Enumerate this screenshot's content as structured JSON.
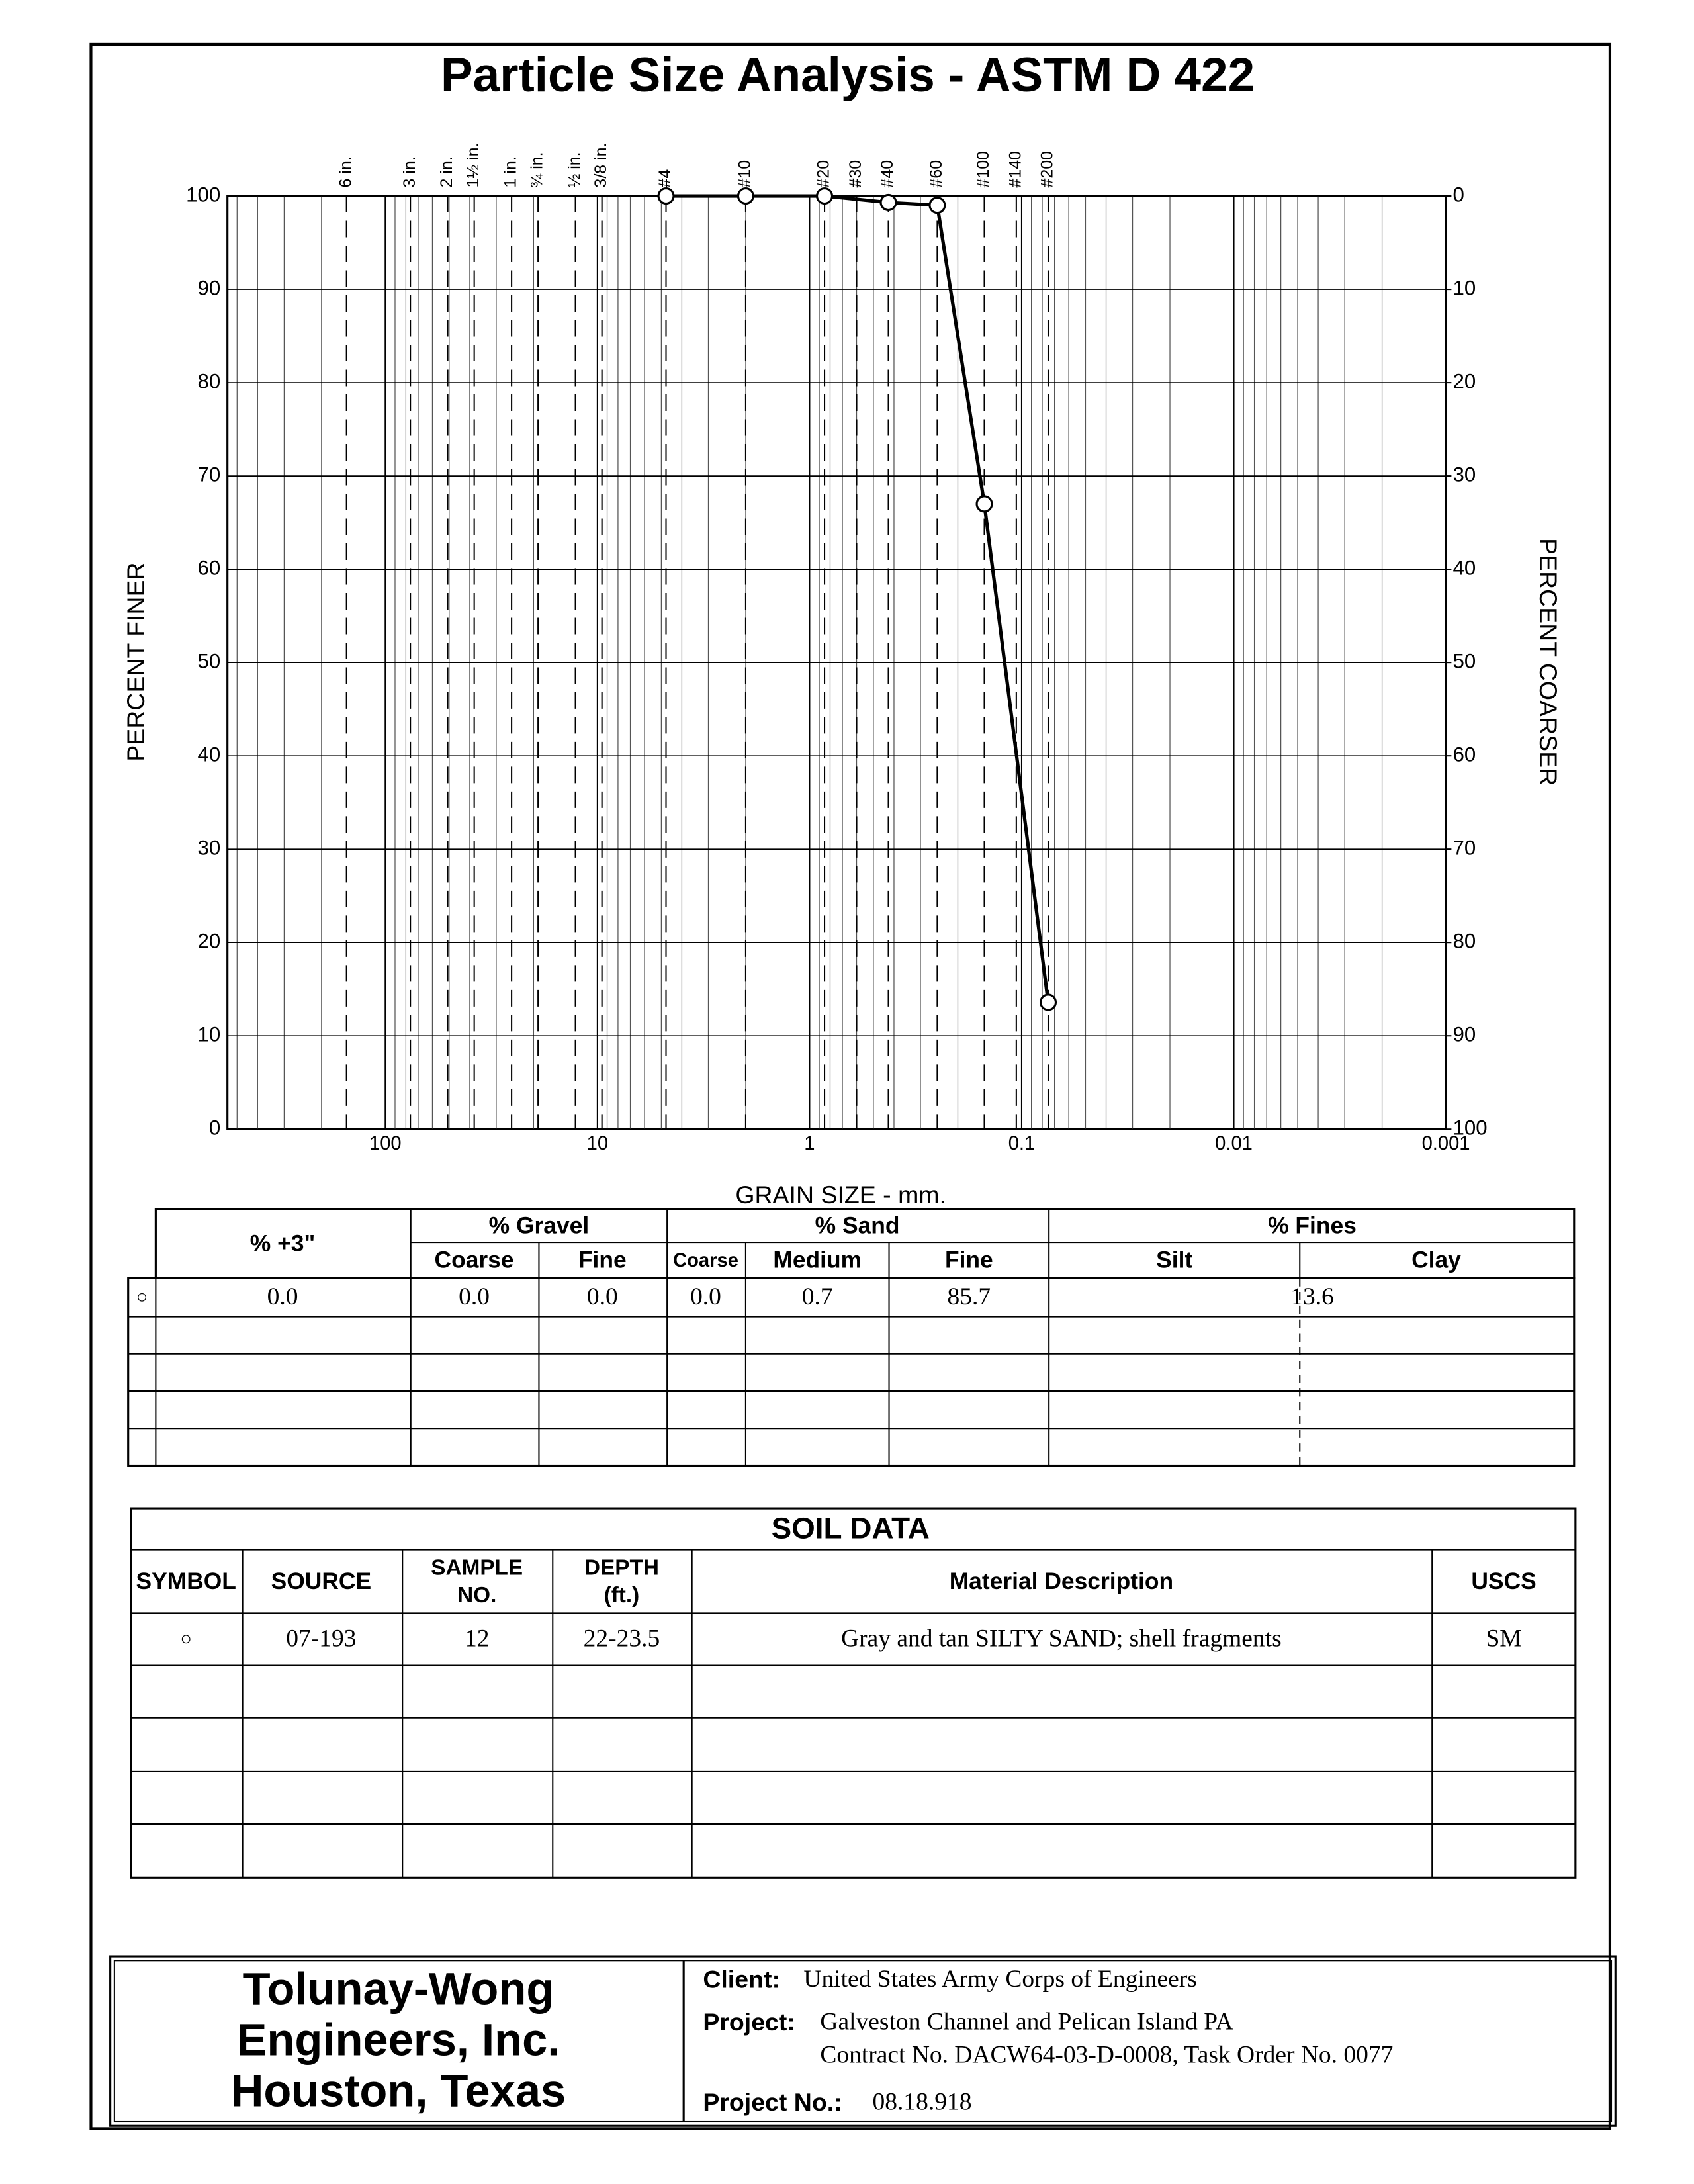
{
  "chart_data": {
    "type": "line",
    "title": "Particle Size Analysis - ASTM D 422",
    "x_label": "GRAIN SIZE - mm.",
    "y_label": "PERCENT FINER",
    "y2_label": "PERCENT COARSER",
    "x": [
      4.75,
      2.0,
      0.85,
      0.425,
      0.25,
      0.15,
      0.075
    ],
    "series": [
      {
        "color": "#000000",
        "marker": "circle",
        "values": [
          100,
          100,
          100,
          99.3,
          99.0,
          67,
          13.6
        ]
      }
    ],
    "xscale": "log",
    "xlim": [
      500,
      0.001
    ],
    "xticks": [
      100,
      10,
      1,
      0.1,
      0.01,
      0.001
    ],
    "ylim": [
      0,
      100
    ],
    "yticks": [
      0,
      10,
      20,
      30,
      40,
      50,
      60,
      70,
      80,
      90,
      100
    ],
    "y2lim": [
      100,
      0
    ],
    "y2ticks": [
      0,
      10,
      20,
      30,
      40,
      50,
      60,
      70,
      80,
      90,
      100
    ],
    "sieves": [
      {
        "value": 152.4,
        "label": "6 in."
      },
      {
        "value": 76.2,
        "label": "3 in."
      },
      {
        "value": 50.8,
        "label": "2 in."
      },
      {
        "value": 38.1,
        "label": "1½ in."
      },
      {
        "value": 25.4,
        "label": "1 in."
      },
      {
        "value": 19.05,
        "label": "¾ in."
      },
      {
        "value": 12.7,
        "label": "½ in."
      },
      {
        "value": 9.525,
        "label": "3/8 in."
      },
      {
        "value": 4.75,
        "label": "#4"
      },
      {
        "value": 2.0,
        "label": "#10"
      },
      {
        "value": 0.85,
        "label": "#20"
      },
      {
        "value": 0.6,
        "label": "#30"
      },
      {
        "value": 0.425,
        "label": "#40"
      },
      {
        "value": 0.25,
        "label": "#60"
      },
      {
        "value": 0.15,
        "label": "#100"
      },
      {
        "value": 0.106,
        "label": "#140"
      },
      {
        "value": 0.075,
        "label": "#200"
      }
    ],
    "grid": true,
    "minor_grid": true
  },
  "gradation_table": {
    "headers": {
      "plus3": "% +3\"",
      "gravel": "% Gravel",
      "sand": "% Sand",
      "fines": "% Fines",
      "sub": [
        "Coarse",
        "Fine",
        "Coarse",
        "Medium",
        "Fine",
        "Silt",
        "Clay"
      ]
    },
    "rows": [
      [
        "○",
        "0.0",
        "0.0",
        "0.0",
        "0.0",
        "0.7",
        "85.7",
        "13.6"
      ]
    ]
  },
  "soil_data": {
    "title": "SOIL DATA",
    "headers": [
      "SYMBOL",
      "SOURCE",
      [
        "SAMPLE",
        "NO."
      ],
      [
        "DEPTH",
        "(ft.)"
      ],
      "Material Description",
      "USCS"
    ],
    "rows": [
      [
        "○",
        "07-193",
        "12",
        "22-23.5",
        "Gray and tan SILTY SAND; shell fragments",
        "SM"
      ]
    ]
  },
  "footer": {
    "company": [
      "Tolunay-Wong",
      "Engineers, Inc.",
      "Houston, Texas"
    ],
    "client_label": "Client:",
    "client": "United States Army Corps of Engineers",
    "project_label": "Project:",
    "project": [
      "Galveston Channel and Pelican Island PA",
      "Contract No. DACW64-03-D-0008, Task Order No. 0077"
    ],
    "project_no_label": "Project No.:",
    "project_no": "08.18.918"
  }
}
